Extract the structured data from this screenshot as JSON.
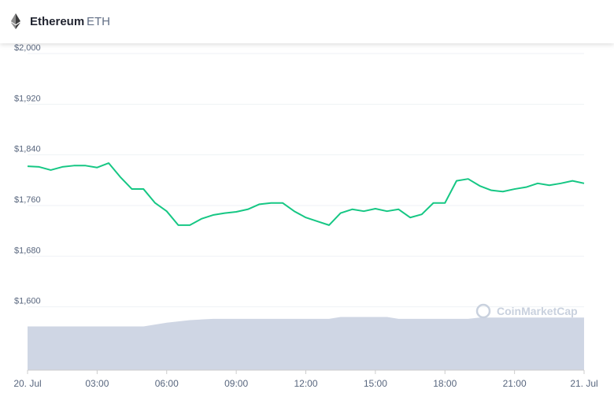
{
  "header": {
    "title": "Ethereum",
    "symbol": "ETH"
  },
  "chart_data": {
    "type": "line",
    "watermark": "CoinMarketCap",
    "x": [
      0,
      0.5,
      1,
      1.5,
      2,
      2.5,
      3,
      3.5,
      4,
      4.5,
      5,
      5.5,
      6,
      6.5,
      7,
      7.5,
      8,
      8.5,
      9,
      9.5,
      10,
      10.5,
      11,
      11.5,
      12,
      12.5,
      13,
      13.5,
      14,
      14.5,
      15,
      15.5,
      16,
      16.5,
      17,
      17.5,
      18,
      18.5,
      19,
      19.5,
      20,
      20.5,
      21,
      21.5,
      22,
      22.5,
      23,
      23.5,
      24
    ],
    "series": [
      {
        "type": "line",
        "color": "#16c784",
        "values": [
          1822,
          1821,
          1816,
          1821,
          1823,
          1823,
          1820,
          1827,
          1805,
          1786,
          1786,
          1764,
          1751,
          1729,
          1729,
          1739,
          1745,
          1748,
          1750,
          1754,
          1762,
          1764,
          1764,
          1751,
          1741,
          1735,
          1729,
          1748,
          1754,
          1751,
          1755,
          1751,
          1754,
          1741,
          1746,
          1764,
          1764,
          1799,
          1802,
          1791,
          1784,
          1782,
          1786,
          1789,
          1795,
          1792,
          1795,
          1799,
          1795
        ]
      },
      {
        "type": "area",
        "color": "#cfd6e4",
        "values": [
          1569,
          1569,
          1569,
          1569,
          1569,
          1569,
          1569,
          1569,
          1569,
          1569,
          1569,
          1572,
          1575,
          1577,
          1579,
          1580,
          1581,
          1581,
          1581,
          1581,
          1581,
          1581,
          1581,
          1581,
          1581,
          1581,
          1581,
          1584,
          1584,
          1584,
          1584,
          1584,
          1581,
          1581,
          1581,
          1581,
          1581,
          1581,
          1581,
          1583,
          1583,
          1583,
          1583,
          1583,
          1583,
          1583,
          1583,
          1583,
          1583
        ]
      }
    ],
    "xlim": [
      0,
      24
    ],
    "xticks": [
      {
        "value": 0,
        "label": "20. Jul"
      },
      {
        "value": 3,
        "label": "03:00"
      },
      {
        "value": 6,
        "label": "06:00"
      },
      {
        "value": 9,
        "label": "09:00"
      },
      {
        "value": 12,
        "label": "12:00"
      },
      {
        "value": 15,
        "label": "15:00"
      },
      {
        "value": 18,
        "label": "18:00"
      },
      {
        "value": 21,
        "label": "21:00"
      },
      {
        "value": 24,
        "label": "21. Jul"
      }
    ],
    "ylim": [
      1500,
      2000
    ],
    "yticks": [
      {
        "value": 1600,
        "label": "$1,600"
      },
      {
        "value": 1680,
        "label": "$1,680"
      },
      {
        "value": 1760,
        "label": "$1,760"
      },
      {
        "value": 1840,
        "label": "$1,840"
      },
      {
        "value": 1920,
        "label": "$1,920"
      },
      {
        "value": 2000,
        "label": "$2,000"
      }
    ],
    "grid": true
  }
}
